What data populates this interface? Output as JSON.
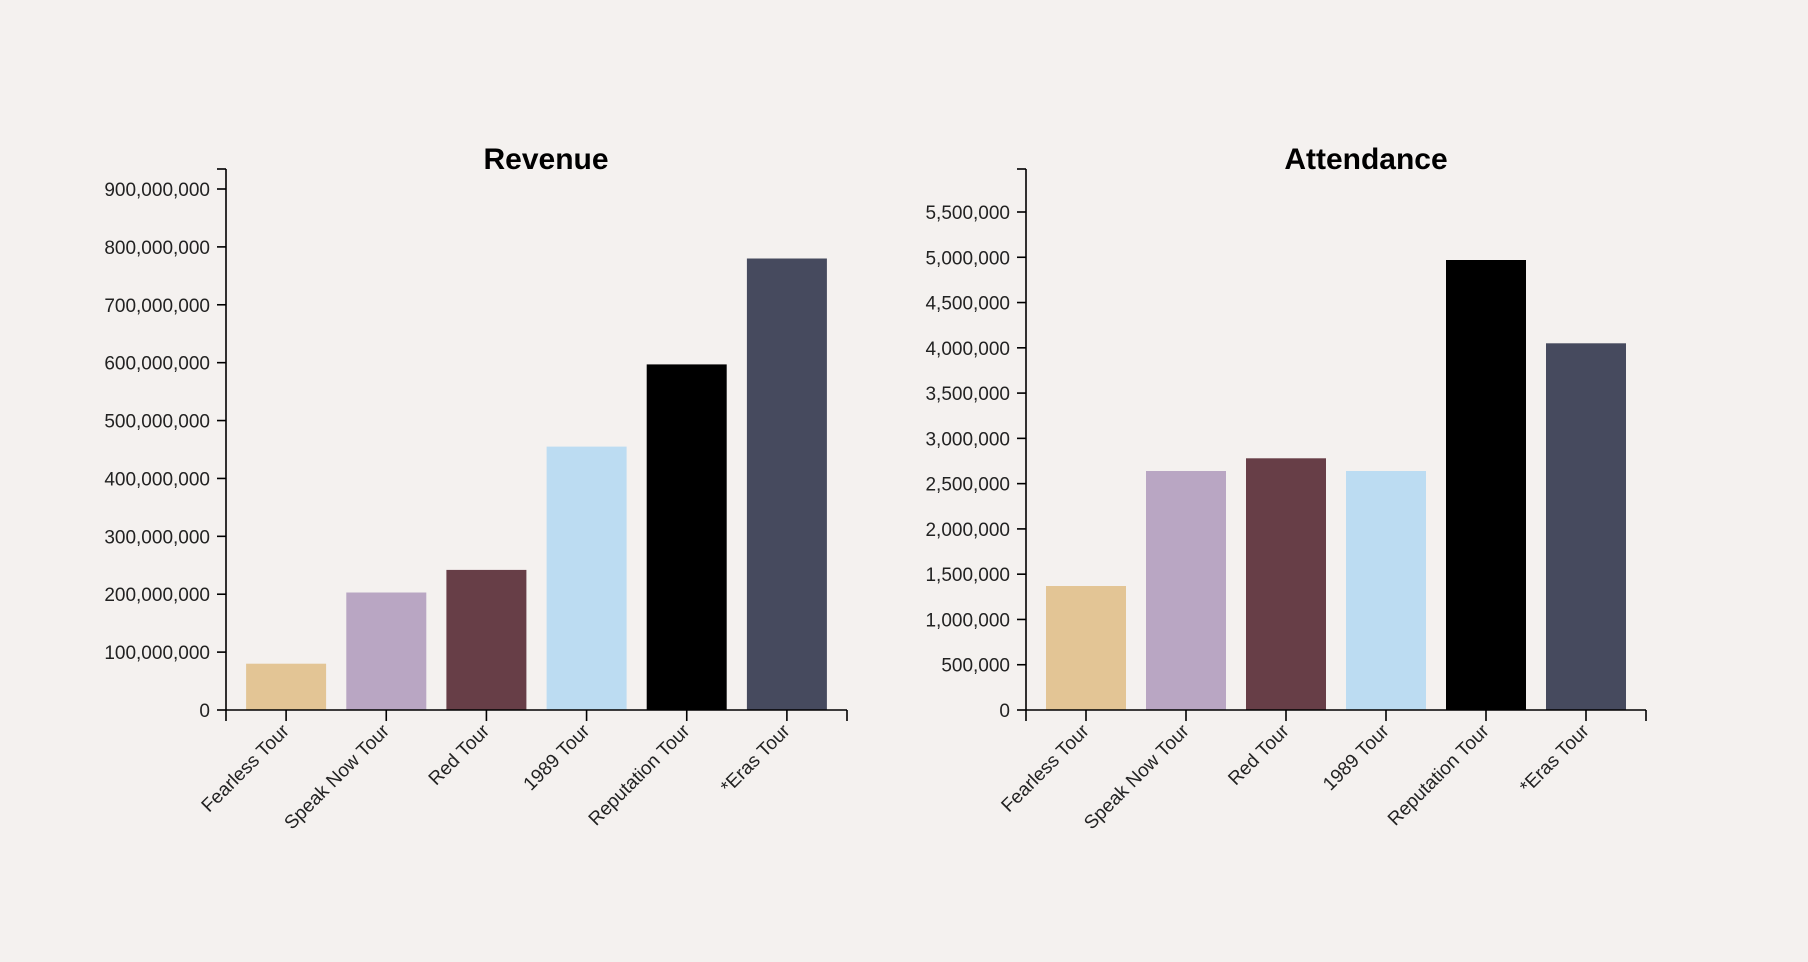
{
  "chart_data": [
    {
      "type": "bar",
      "title": "Revenue",
      "categories": [
        "Fearless Tour",
        "Speak Now Tour",
        "Red Tour",
        "1989 Tour",
        "Reputation Tour",
        "*Eras Tour"
      ],
      "values": [
        80000000,
        203000000,
        242000000,
        455000000,
        597000000,
        780000000
      ],
      "colors": [
        "#e3c595",
        "#b9a6c3",
        "#673e47",
        "#bcdcf2",
        "#000000",
        "#464a5e"
      ],
      "ylim": [
        0,
        900000000
      ],
      "yticks": [
        0,
        100000000,
        200000000,
        300000000,
        400000000,
        500000000,
        600000000,
        700000000,
        800000000,
        900000000
      ],
      "ytick_labels": [
        "0",
        "100,000,000",
        "200,000,000",
        "300,000,000",
        "400,000,000",
        "500,000,000",
        "600,000,000",
        "700,000,000",
        "800,000,000",
        "900,000,000"
      ],
      "xlabel": "",
      "ylabel": "",
      "grid": false
    },
    {
      "type": "bar",
      "title": "Attendance",
      "categories": [
        "Fearless Tour",
        "Speak Now Tour",
        "Red Tour",
        "1989 Tour",
        "Reputation Tour",
        "*Eras Tour"
      ],
      "values": [
        1370000,
        2640000,
        2780000,
        2640000,
        4970000,
        4050000
      ],
      "colors": [
        "#e3c595",
        "#b9a6c3",
        "#673e47",
        "#bcdcf2",
        "#000000",
        "#464a5e"
      ],
      "ylim": [
        0,
        5500000
      ],
      "yticks": [
        0,
        500000,
        1000000,
        1500000,
        2000000,
        2500000,
        3000000,
        3500000,
        4000000,
        4500000,
        5000000,
        5500000
      ],
      "ytick_labels": [
        "0",
        "500,000",
        "1,000,000",
        "1,500,000",
        "2,000,000",
        "2,500,000",
        "3,000,000",
        "3,500,000",
        "4,000,000",
        "4,500,000",
        "5,000,000",
        "5,500,000"
      ],
      "xlabel": "",
      "ylabel": "",
      "grid": false
    }
  ]
}
